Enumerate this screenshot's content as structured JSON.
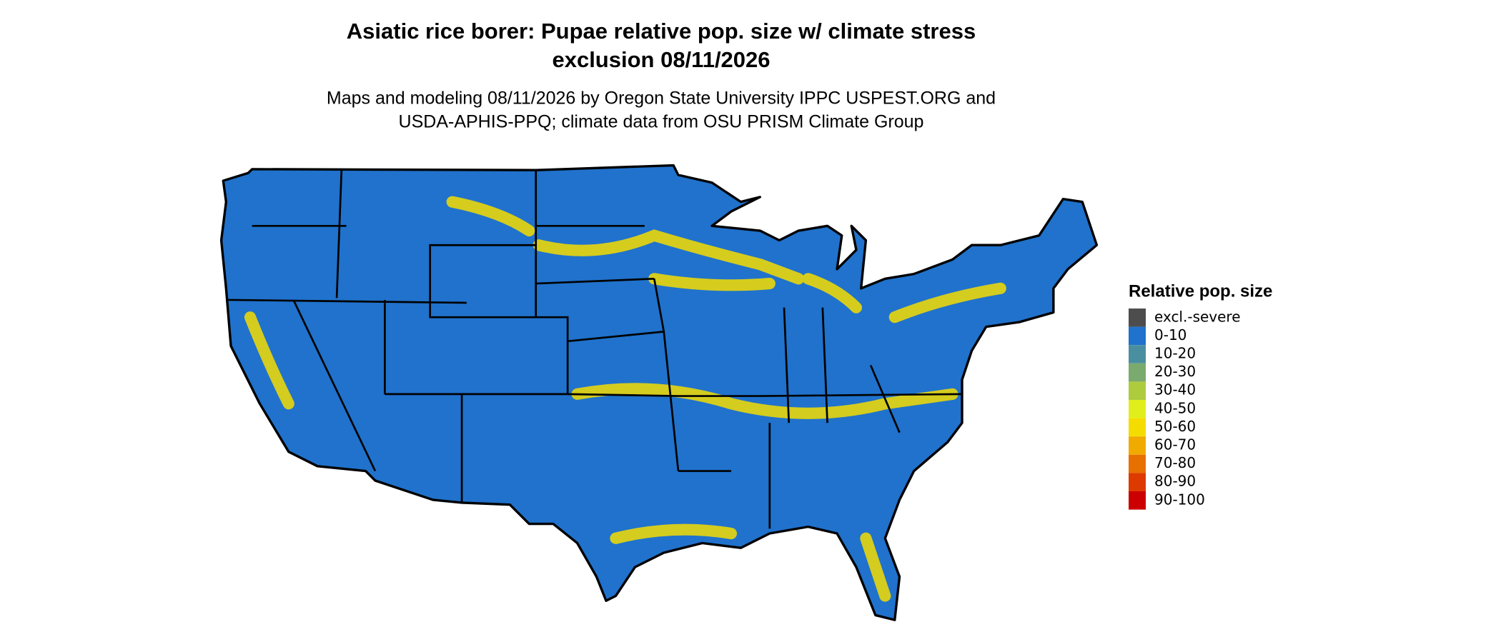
{
  "title": [
    "Asiatic rice borer: Pupae relative pop. size w/ climate stress",
    "exclusion 08/11/2026"
  ],
  "subtitle": [
    "Maps and modeling 08/11/2026 by Oregon State University IPPC USPEST.ORG and",
    "USDA-APHIS-PPQ; climate data from OSU PRISM Climate Group"
  ],
  "legend": {
    "title": "Relative pop. size",
    "items": [
      {
        "label": "excl.-severe",
        "color": "#4d4d4d"
      },
      {
        "label": "0-10",
        "color": "#2072cc"
      },
      {
        "label": "10-20",
        "color": "#4a8fa0"
      },
      {
        "label": "20-30",
        "color": "#7aaa6e"
      },
      {
        "label": "30-40",
        "color": "#aecb3e"
      },
      {
        "label": "40-50",
        "color": "#e0ef1c"
      },
      {
        "label": "50-60",
        "color": "#f5dc00"
      },
      {
        "label": "60-70",
        "color": "#f0aa00"
      },
      {
        "label": "70-80",
        "color": "#e87000"
      },
      {
        "label": "80-90",
        "color": "#dd3a00"
      },
      {
        "label": "90-100",
        "color": "#cc0000"
      }
    ]
  }
}
